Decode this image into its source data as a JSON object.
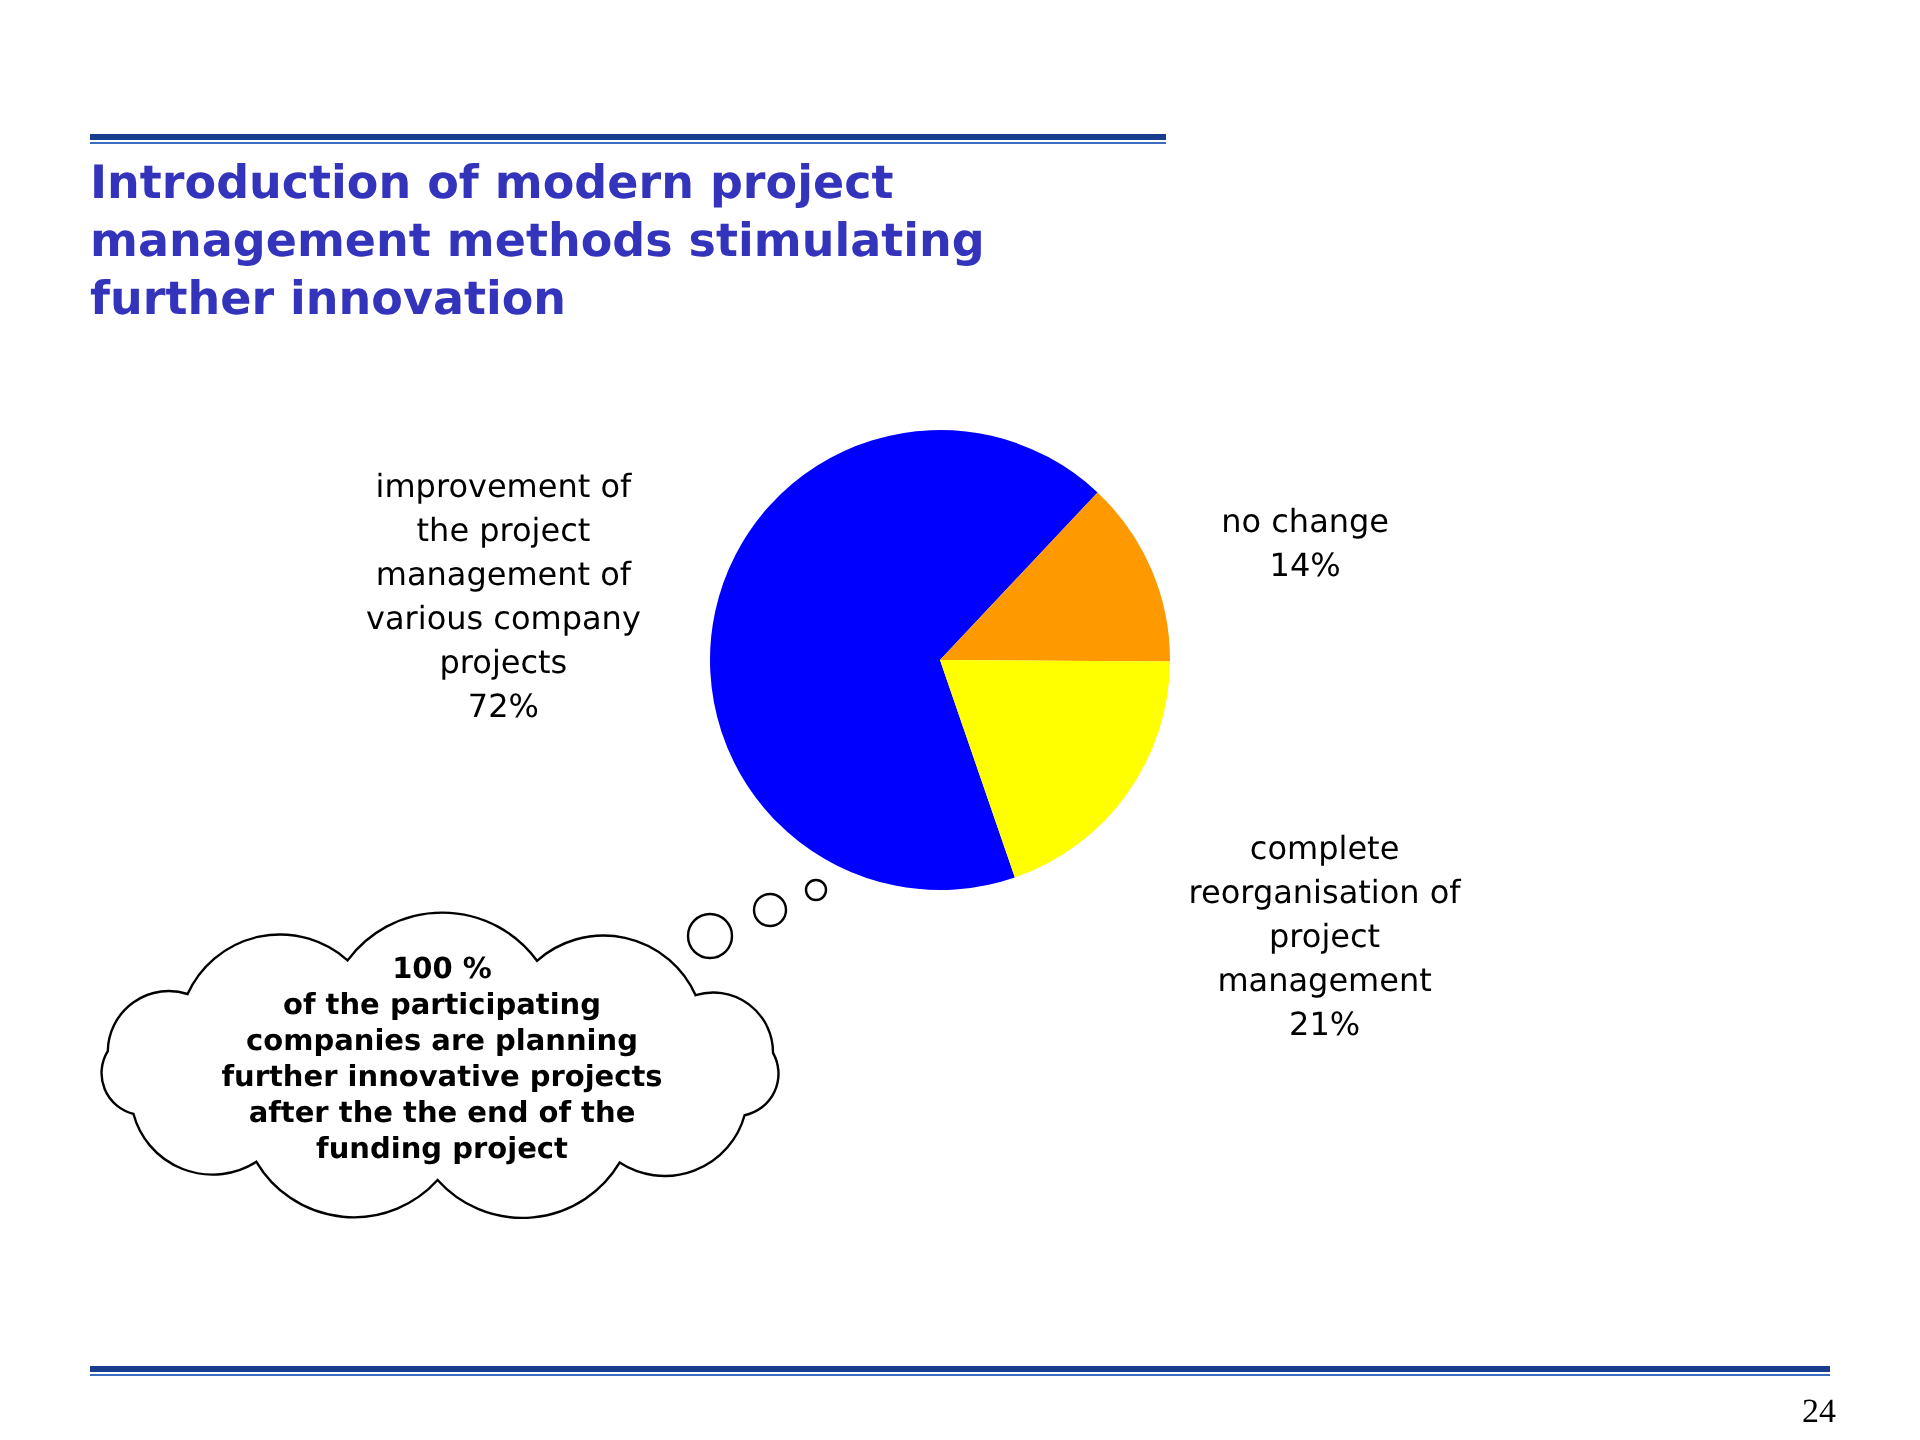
{
  "chart_data": {
    "type": "pie",
    "title": "Introduction of modern project management methods stimulating further innovation",
    "categories": [
      "improvement of the project management of various company projects",
      "no change",
      "complete reorganisation of project management"
    ],
    "values": [
      72,
      14,
      21
    ],
    "colors": [
      "#0000ff",
      "#ff9900",
      "#ffff00"
    ],
    "value_labels": [
      "72%",
      "14%",
      "21%"
    ],
    "annotations": [
      "100 %\nof the participating companies are planning further innovative projects after the the end of the funding project",
      "24"
    ]
  }
}
